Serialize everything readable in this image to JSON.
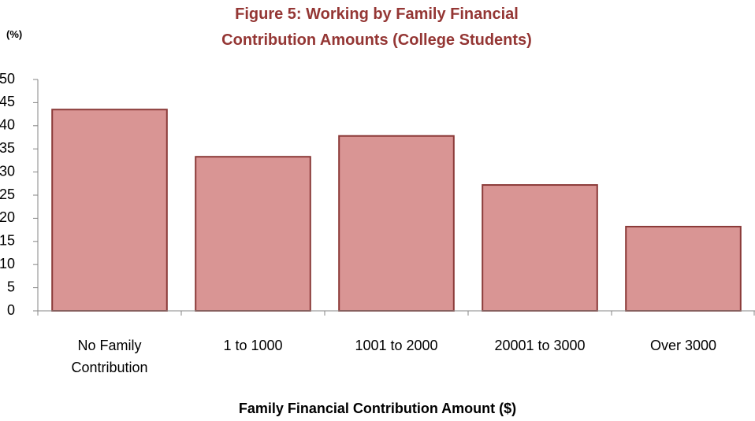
{
  "chart_data": {
    "type": "bar",
    "title": "Figure 5: Working by Family Financial Contribution Amounts (College Students)",
    "y_label": "(%)",
    "x_label": "Family Financial Contribution Amount ($)",
    "categories": [
      "No Family Contribution",
      "1 to 1000",
      "1001 to 2000",
      "20001 to 3000",
      "Over 3000"
    ],
    "values": [
      43.5,
      33.3,
      37.8,
      27.2,
      18.2
    ],
    "color": "#d99594",
    "ylim": [
      0,
      50
    ],
    "yticks": [
      0,
      5,
      10,
      15,
      20,
      25,
      30,
      35,
      40,
      45,
      50
    ],
    "grid": false
  }
}
